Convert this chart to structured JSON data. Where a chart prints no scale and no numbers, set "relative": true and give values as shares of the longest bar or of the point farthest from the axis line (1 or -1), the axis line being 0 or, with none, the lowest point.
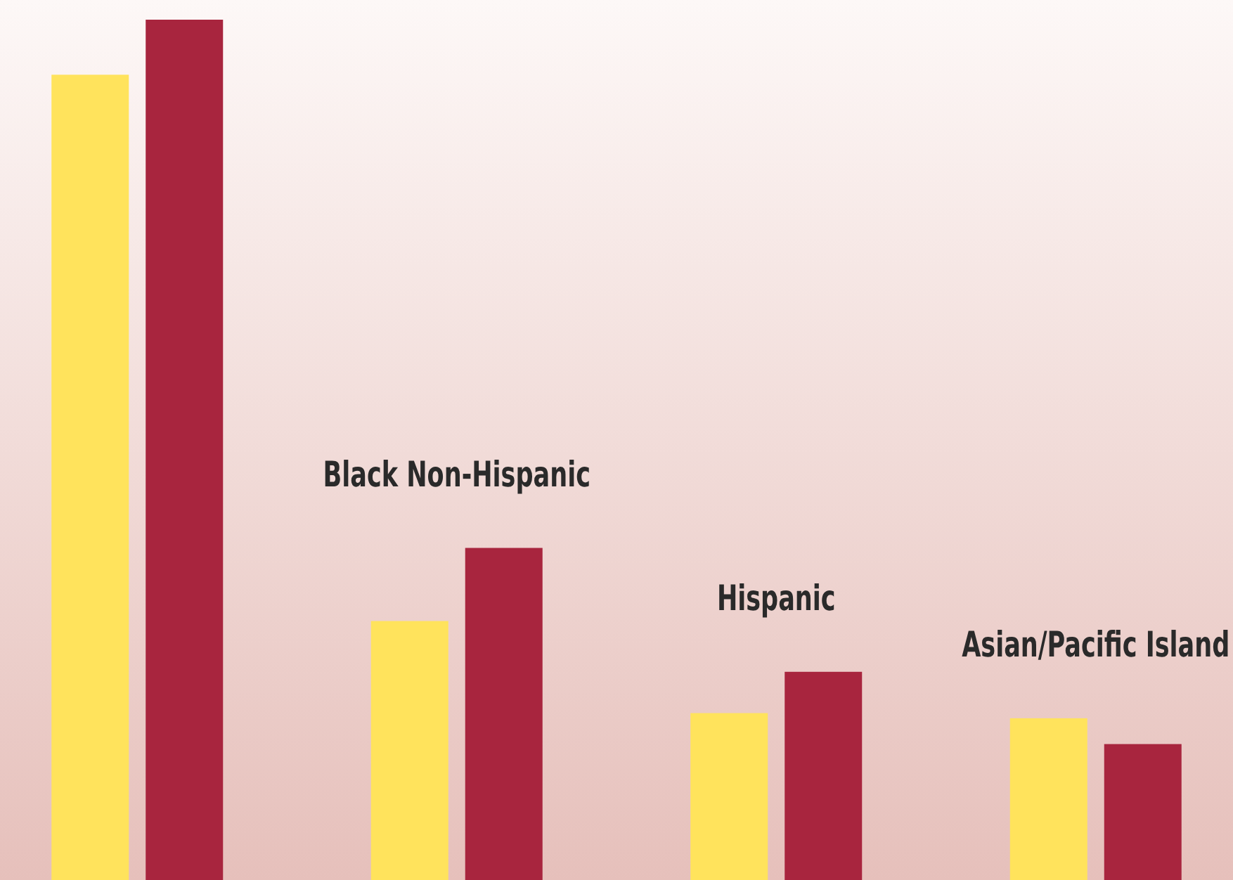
{
  "chart_data": {
    "type": "bar",
    "relative": true,
    "categories": [
      null,
      "Black Non-Hispanic",
      "Hispanic",
      "Asian/Pacific Island"
    ],
    "series": [
      {
        "color": "#ffe35c",
        "values": [
          0.936,
          0.301,
          0.194,
          0.188
        ]
      },
      {
        "color": "#a8253e",
        "values": [
          1,
          0.386,
          0.242,
          0.158
        ]
      }
    ]
  }
}
